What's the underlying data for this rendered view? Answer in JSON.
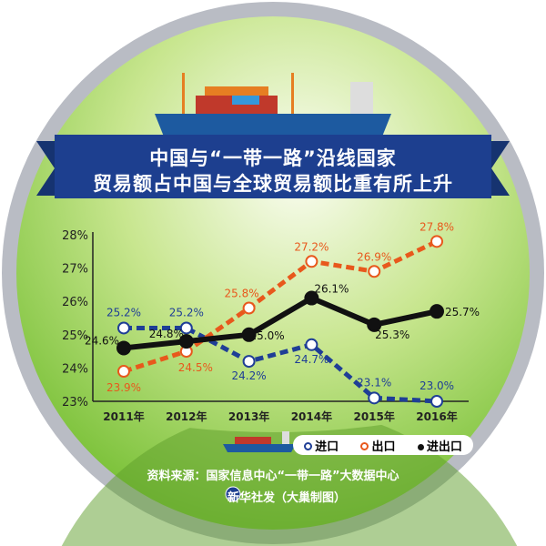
{
  "title_line1": "中国与“一带一路”沿线国家",
  "title_line2": "贸易额占中国与全球贸易额比重有所上升",
  "source": "资料来源：国家信息中心“一带一路”大数据中心",
  "credit": "新华社发（大巢制图）",
  "colors": {
    "import": "#1f3e96",
    "export": "#e8581c",
    "total": "#111111",
    "banner": "#1d3f8f",
    "green": "#7cc23a"
  },
  "chart_data": {
    "type": "line",
    "categories": [
      "2011年",
      "2012年",
      "2013年",
      "2014年",
      "2015年",
      "2016年"
    ],
    "yticks": [
      "23%",
      "24%",
      "25%",
      "26%",
      "27%",
      "28%"
    ],
    "ylim": [
      23,
      28
    ],
    "legend_position": "bottom-right",
    "series": [
      {
        "name": "进口",
        "style": "dashed",
        "marker": "hollow",
        "values": [
          25.2,
          25.2,
          24.2,
          24.7,
          23.1,
          23.0
        ],
        "labels": [
          "25.2%",
          "25.2%",
          "24.2%",
          "24.7%",
          "23.1%",
          "23.0%"
        ]
      },
      {
        "name": "出口",
        "style": "dashed",
        "marker": "hollow",
        "values": [
          23.9,
          24.5,
          25.8,
          27.2,
          26.9,
          27.8
        ],
        "labels": [
          "23.9%",
          "24.5%",
          "25.8%",
          "27.2%",
          "26.9%",
          "27.8%"
        ]
      },
      {
        "name": "进出口",
        "style": "solid",
        "marker": "filled",
        "values": [
          24.6,
          24.8,
          25.0,
          26.1,
          25.3,
          25.7
        ],
        "labels": [
          "24.6%",
          "24.8%",
          "25.0%",
          "26.1%",
          "25.3%",
          "25.7%"
        ]
      }
    ]
  }
}
